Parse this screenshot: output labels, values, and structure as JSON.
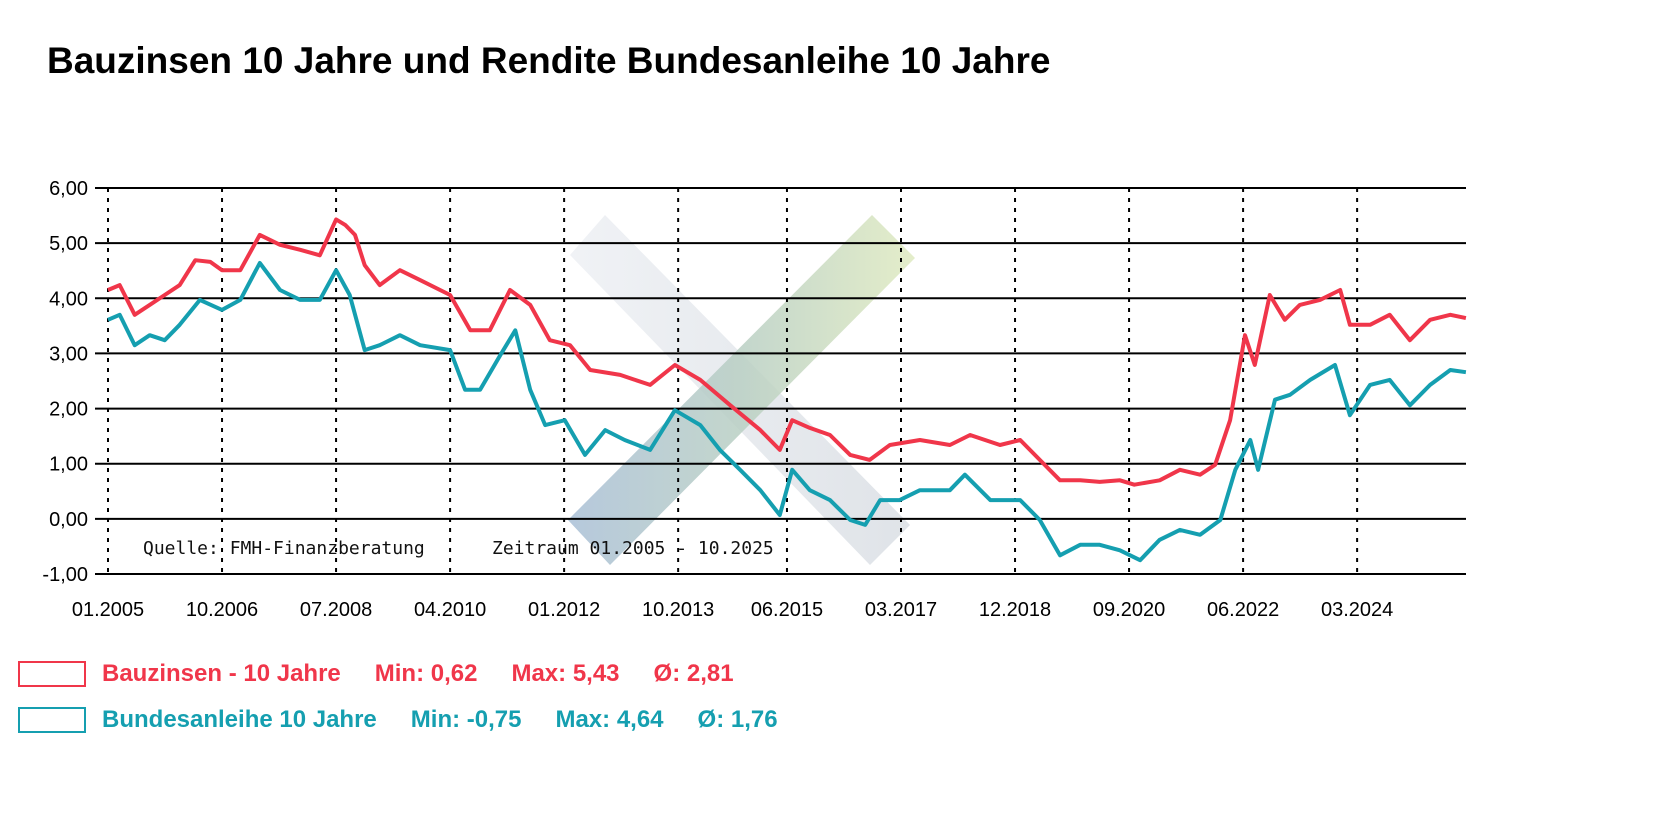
{
  "chart_data": {
    "type": "line",
    "title": "Bauzinsen 10 Jahre und Rendite Bundesanleihe 10 Jahre",
    "ylim": [
      -1,
      6
    ],
    "xlim": [
      2005.0,
      2025.84
    ],
    "yticks": [
      "6,00",
      "5,00",
      "4,00",
      "3,00",
      "2,00",
      "1,00",
      "0,00",
      "-1,00"
    ],
    "ytick_values": [
      6,
      5,
      4,
      3,
      2,
      1,
      0,
      -1
    ],
    "xticks": [
      "01.2005",
      "10.2006",
      "07.2008",
      "04.2010",
      "01.2012",
      "10.2013",
      "06.2015",
      "03.2017",
      "12.2018",
      "09.2020",
      "06.2022",
      "03.2024"
    ],
    "xtick_values": [
      2005.0,
      2006.75,
      2008.5,
      2010.25,
      2012.0,
      2013.75,
      2015.42,
      2017.17,
      2018.92,
      2020.67,
      2022.42,
      2024.17
    ],
    "grid": {
      "horizontal": "solid",
      "vertical": "dotted"
    },
    "annotations": {
      "source": "Quelle: FMH-Finanzberatung",
      "period": "Zeitraum 01.2005 - 10.2025"
    },
    "series": [
      {
        "name": "Bauzinsen - 10 Jahre",
        "color": "#f0364a",
        "stats": {
          "min": "Min: 0,62",
          "max": "Max: 5,43",
          "avg": "Ø: 2,81"
        },
        "x": [
          2005.0,
          2005.18,
          2005.41,
          2005.64,
          2005.87,
          2006.1,
          2006.34,
          2006.57,
          2006.75,
          2007.03,
          2007.33,
          2007.64,
          2007.95,
          2008.25,
          2008.5,
          2008.64,
          2008.79,
          2008.94,
          2009.17,
          2009.48,
          2009.79,
          2010.25,
          2010.56,
          2010.86,
          2011.17,
          2011.48,
          2011.78,
          2012.09,
          2012.4,
          2012.86,
          2013.32,
          2013.7,
          2014.09,
          2014.55,
          2015.01,
          2015.31,
          2015.5,
          2015.77,
          2016.08,
          2016.39,
          2016.69,
          2017.0,
          2017.46,
          2017.92,
          2018.23,
          2018.69,
          2019.0,
          2019.3,
          2019.61,
          2019.92,
          2020.22,
          2020.53,
          2020.75,
          2021.14,
          2021.45,
          2021.76,
          2021.99,
          2022.22,
          2022.45,
          2022.6,
          2022.83,
          2023.06,
          2023.29,
          2023.6,
          2023.91,
          2024.06,
          2024.37,
          2024.67,
          2024.98,
          2025.29,
          2025.6,
          2025.84
        ],
        "values": [
          4.15,
          4.24,
          3.7,
          3.88,
          4.06,
          4.24,
          4.69,
          4.66,
          4.51,
          4.51,
          5.15,
          4.97,
          4.88,
          4.78,
          5.43,
          5.33,
          5.15,
          4.6,
          4.24,
          4.51,
          4.33,
          4.06,
          3.42,
          3.42,
          4.15,
          3.88,
          3.24,
          3.15,
          2.7,
          2.61,
          2.43,
          2.79,
          2.52,
          2.06,
          1.61,
          1.25,
          1.79,
          1.65,
          1.52,
          1.16,
          1.07,
          1.34,
          1.43,
          1.34,
          1.52,
          1.34,
          1.43,
          1.07,
          0.7,
          0.7,
          0.67,
          0.7,
          0.62,
          0.7,
          0.89,
          0.8,
          0.98,
          1.79,
          3.33,
          2.79,
          4.06,
          3.61,
          3.88,
          3.97,
          4.15,
          3.52,
          3.52,
          3.7,
          3.24,
          3.61,
          3.7,
          3.64
        ]
      },
      {
        "name": "Bundesanleihe 10 Jahre",
        "color": "#159fb0",
        "stats": {
          "min": "Min: -0,75",
          "max": "Max: 4,64",
          "avg": "Ø: 1,76"
        },
        "x": [
          2005.0,
          2005.18,
          2005.41,
          2005.64,
          2005.87,
          2006.1,
          2006.41,
          2006.75,
          2007.03,
          2007.33,
          2007.64,
          2007.95,
          2008.25,
          2008.5,
          2008.71,
          2008.94,
          2009.17,
          2009.48,
          2009.79,
          2010.25,
          2010.48,
          2010.71,
          2011.02,
          2011.25,
          2011.48,
          2011.71,
          2012.01,
          2012.32,
          2012.63,
          2012.93,
          2013.32,
          2013.7,
          2014.09,
          2014.39,
          2014.7,
          2015.01,
          2015.31,
          2015.5,
          2015.77,
          2016.08,
          2016.39,
          2016.62,
          2016.85,
          2017.15,
          2017.46,
          2017.92,
          2018.15,
          2018.54,
          2019.0,
          2019.3,
          2019.61,
          2019.92,
          2020.22,
          2020.53,
          2020.84,
          2021.14,
          2021.45,
          2021.76,
          2022.07,
          2022.3,
          2022.53,
          2022.65,
          2022.91,
          2023.14,
          2023.45,
          2023.83,
          2024.06,
          2024.37,
          2024.67,
          2024.98,
          2025.29,
          2025.6,
          2025.84
        ],
        "values": [
          3.61,
          3.7,
          3.15,
          3.33,
          3.24,
          3.52,
          3.97,
          3.79,
          3.97,
          4.64,
          4.15,
          3.97,
          3.97,
          4.51,
          4.06,
          3.06,
          3.15,
          3.33,
          3.15,
          3.06,
          2.34,
          2.34,
          2.97,
          3.42,
          2.34,
          1.7,
          1.79,
          1.16,
          1.61,
          1.43,
          1.25,
          1.97,
          1.7,
          1.25,
          0.89,
          0.52,
          0.07,
          0.89,
          0.52,
          0.34,
          -0.02,
          -0.11,
          0.34,
          0.34,
          0.52,
          0.52,
          0.8,
          0.34,
          0.34,
          -0.02,
          -0.66,
          -0.47,
          -0.47,
          -0.57,
          -0.75,
          -0.38,
          -0.2,
          -0.29,
          -0.02,
          0.89,
          1.43,
          0.89,
          2.16,
          2.25,
          2.52,
          2.79,
          1.88,
          2.43,
          2.52,
          2.06,
          2.43,
          2.7,
          2.66
        ]
      }
    ]
  }
}
